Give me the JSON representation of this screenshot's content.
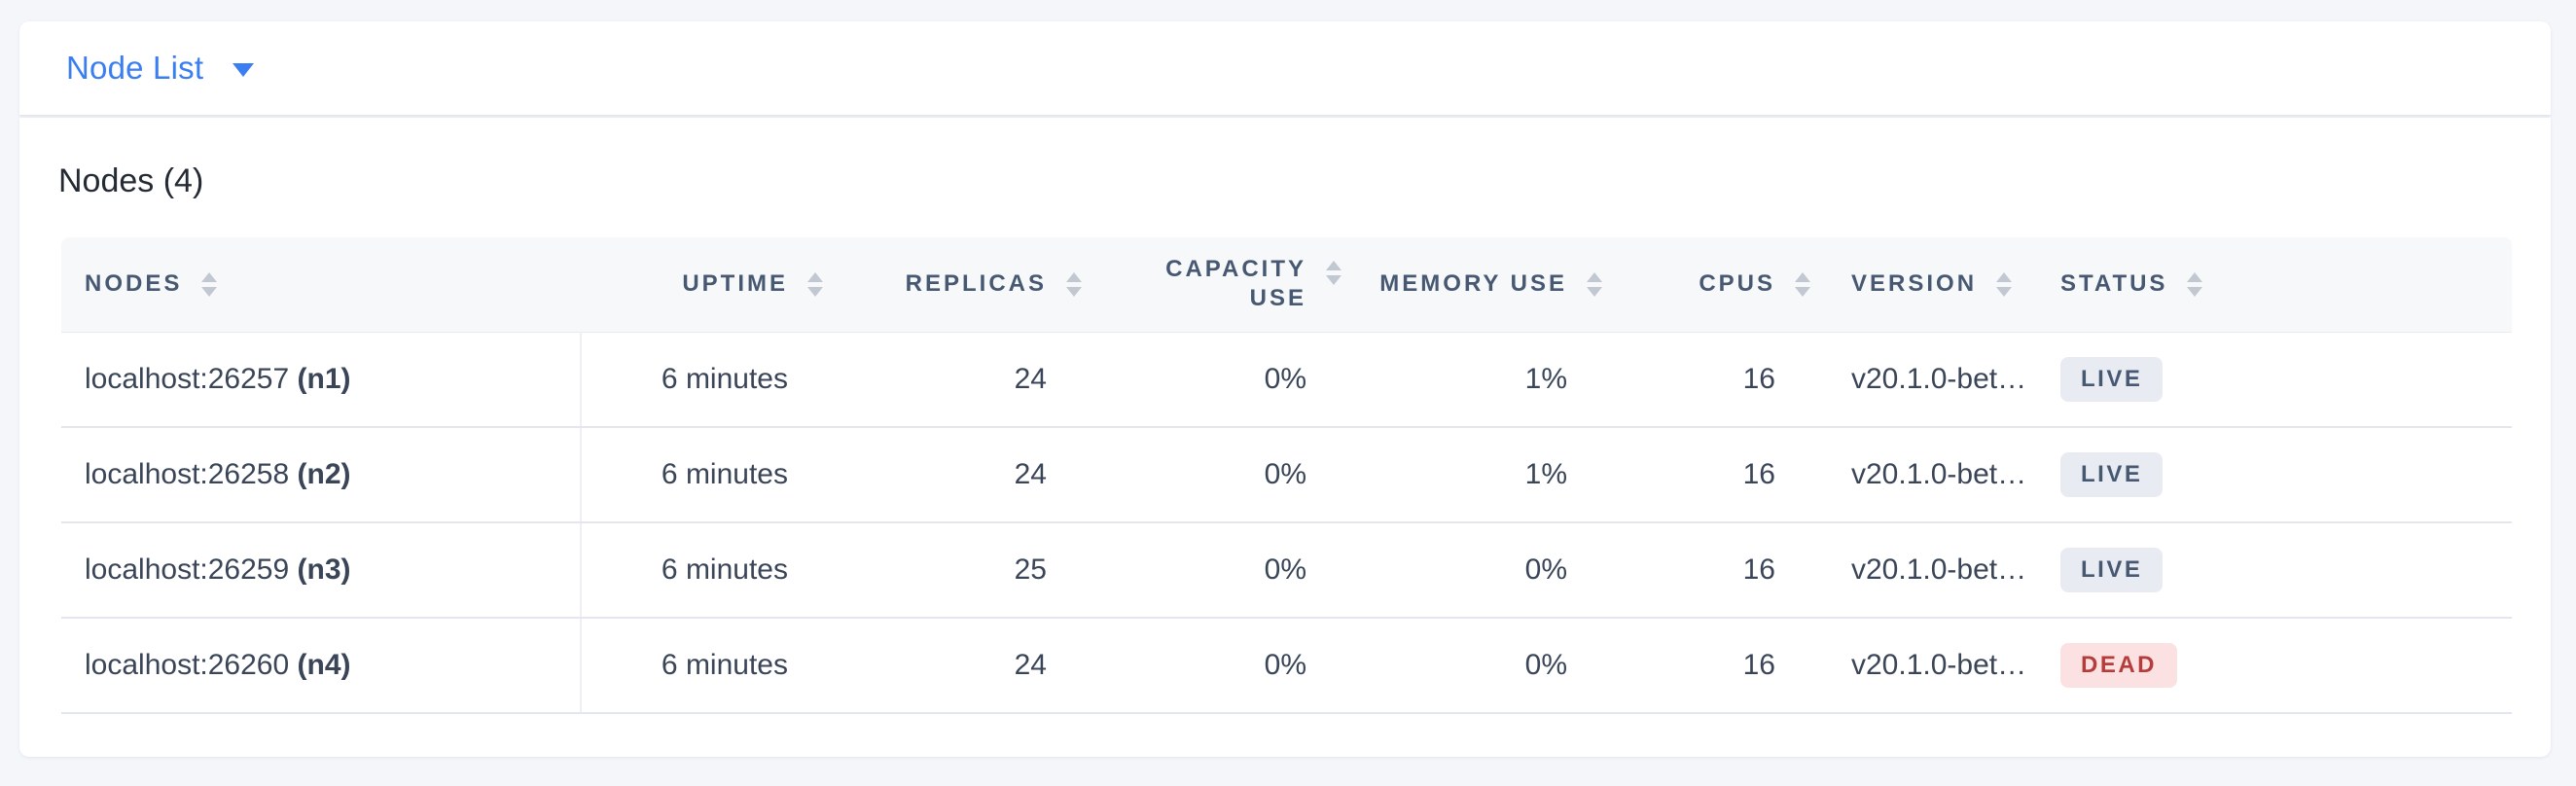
{
  "view_selector": {
    "label": "Node List"
  },
  "nodes_section": {
    "title": "Nodes (4)"
  },
  "table": {
    "columns": [
      {
        "key": "nodes",
        "label": "Nodes",
        "align": "left",
        "sortable": true
      },
      {
        "key": "uptime",
        "label": "Uptime",
        "align": "right",
        "sortable": true
      },
      {
        "key": "replicas",
        "label": "Replicas",
        "align": "right",
        "sortable": true
      },
      {
        "key": "capacity_use",
        "label": "Capacity Use",
        "align": "right",
        "sortable": true
      },
      {
        "key": "memory_use",
        "label": "Memory Use",
        "align": "right",
        "sortable": true
      },
      {
        "key": "cpus",
        "label": "CPUs",
        "align": "right",
        "sortable": true
      },
      {
        "key": "version",
        "label": "Version",
        "align": "left",
        "sortable": true
      },
      {
        "key": "status",
        "label": "Status",
        "align": "left",
        "sortable": true
      }
    ],
    "rows": [
      {
        "address": "localhost:26257",
        "node_id": "(n1)",
        "uptime": "6 minutes",
        "replicas": "24",
        "capacity_use": "0%",
        "memory_use": "1%",
        "cpus": "16",
        "version": "v20.1.0-bet…",
        "status": "LIVE"
      },
      {
        "address": "localhost:26258",
        "node_id": "(n2)",
        "uptime": "6 minutes",
        "replicas": "24",
        "capacity_use": "0%",
        "memory_use": "1%",
        "cpus": "16",
        "version": "v20.1.0-bet…",
        "status": "LIVE"
      },
      {
        "address": "localhost:26259",
        "node_id": "(n3)",
        "uptime": "6 minutes",
        "replicas": "25",
        "capacity_use": "0%",
        "memory_use": "0%",
        "cpus": "16",
        "version": "v20.1.0-bet…",
        "status": "LIVE"
      },
      {
        "address": "localhost:26260",
        "node_id": "(n4)",
        "uptime": "6 minutes",
        "replicas": "24",
        "capacity_use": "0%",
        "memory_use": "0%",
        "cpus": "16",
        "version": "v20.1.0-bet…",
        "status": "DEAD"
      }
    ]
  },
  "colors": {
    "accent_blue": "#3a7ef2",
    "live_badge_bg": "#e8ebf2",
    "live_badge_text": "#475872",
    "dead_badge_bg": "#fbe1e1",
    "dead_badge_text": "#b63c3c"
  }
}
